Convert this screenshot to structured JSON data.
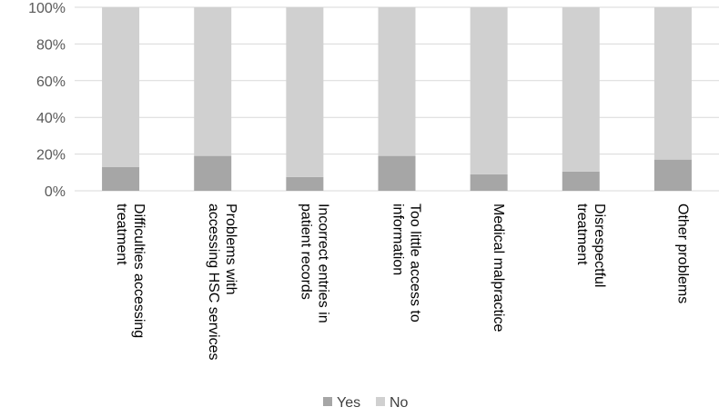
{
  "chart_data": {
    "type": "bar",
    "stacked": true,
    "percent_stacked": true,
    "categories": [
      [
        "Difficulties accessing",
        "treatment"
      ],
      [
        "Problems with",
        "accessing HSC services"
      ],
      [
        "Incorrect entries in",
        "patient records"
      ],
      [
        "Too little access to",
        "information"
      ],
      [
        "Medical malpractice"
      ],
      [
        "Disrespectful",
        "treatment"
      ],
      [
        "Other problems"
      ]
    ],
    "series": [
      {
        "name": "Yes",
        "color": "#a6a6a6",
        "values": [
          13,
          19,
          7.5,
          19,
          9,
          10.5,
          17
        ]
      },
      {
        "name": "No",
        "color": "#d0d0d0",
        "values": [
          87,
          81,
          92.5,
          81,
          91,
          89.5,
          83
        ]
      }
    ],
    "ylim": [
      0,
      100
    ],
    "yticks": [
      "0%",
      "20%",
      "40%",
      "60%",
      "80%",
      "100%"
    ],
    "grid": true,
    "legend_position": "bottom",
    "xlabel": "",
    "ylabel": ""
  }
}
